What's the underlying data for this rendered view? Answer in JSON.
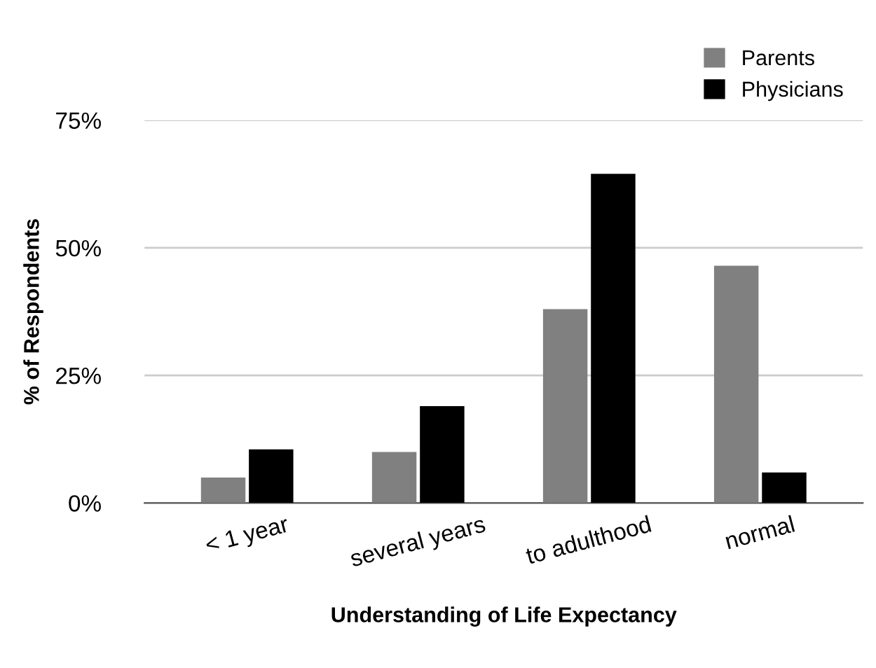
{
  "chart_data": {
    "type": "bar",
    "xlabel": "Understanding of Life Expectancy",
    "ylabel": "% of Respondents",
    "categories": [
      "< 1 year",
      "several years",
      "to adulthood",
      "normal"
    ],
    "series": [
      {
        "name": "Parents",
        "color": "#808080",
        "values": [
          5,
          10,
          38,
          46.5
        ]
      },
      {
        "name": "Physicians",
        "color": "#000000",
        "values": [
          10.5,
          19,
          64.5,
          6
        ]
      }
    ],
    "ylim": [
      0,
      75
    ],
    "yticks": [
      {
        "value": 0,
        "label": "0%"
      },
      {
        "value": 25,
        "label": "25%"
      },
      {
        "value": 50,
        "label": "50%"
      },
      {
        "value": 75,
        "label": "75%"
      }
    ],
    "grid": "y",
    "legend": "top right"
  }
}
